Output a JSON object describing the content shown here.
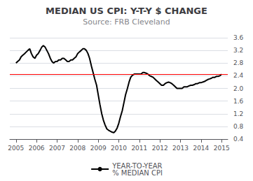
{
  "chart_data": {
    "type": "line",
    "title": "MEDIAN US CPI: Y-T-Y $ CHANGE",
    "subtitle": "Source: FRB Cleveland",
    "x": [
      2005.0,
      2005.08,
      2005.17,
      2005.25,
      2005.33,
      2005.42,
      2005.5,
      2005.58,
      2005.67,
      2005.75,
      2005.83,
      2005.92,
      2006.0,
      2006.08,
      2006.17,
      2006.25,
      2006.33,
      2006.42,
      2006.5,
      2006.58,
      2006.67,
      2006.75,
      2006.83,
      2006.92,
      2007.0,
      2007.08,
      2007.17,
      2007.25,
      2007.33,
      2007.42,
      2007.5,
      2007.58,
      2007.67,
      2007.75,
      2007.83,
      2007.92,
      2008.0,
      2008.08,
      2008.17,
      2008.25,
      2008.33,
      2008.42,
      2008.5,
      2008.58,
      2008.67,
      2008.75,
      2008.83,
      2008.92,
      2009.0,
      2009.08,
      2009.17,
      2009.25,
      2009.33,
      2009.42,
      2009.5,
      2009.58,
      2009.67,
      2009.75,
      2009.83,
      2009.92,
      2010.0,
      2010.08,
      2010.17,
      2010.25,
      2010.33,
      2010.42,
      2010.5,
      2010.58,
      2010.67,
      2010.75,
      2010.83,
      2010.92,
      2011.0,
      2011.08,
      2011.17,
      2011.25,
      2011.33,
      2011.42,
      2011.5,
      2011.58,
      2011.67,
      2011.75,
      2011.83,
      2011.92,
      2012.0,
      2012.08,
      2012.17,
      2012.25,
      2012.33,
      2012.42,
      2012.5,
      2012.58,
      2012.67,
      2012.75,
      2012.83,
      2012.92,
      2013.0,
      2013.08,
      2013.17,
      2013.25,
      2013.33,
      2013.42,
      2013.5,
      2013.58,
      2013.67,
      2013.75,
      2013.83,
      2013.92,
      2014.0,
      2014.08,
      2014.17,
      2014.25,
      2014.33,
      2014.42,
      2014.5,
      2014.58,
      2014.67,
      2014.75,
      2014.83,
      2014.92,
      2015.0
    ],
    "series": [
      {
        "name": "YEAR-TO-YEAR\n% MEDIAN CPI",
        "color": "#000000",
        "values": [
          2.8,
          2.85,
          2.9,
          3.0,
          3.05,
          3.1,
          3.15,
          3.2,
          3.25,
          3.1,
          3.0,
          2.95,
          3.05,
          3.1,
          3.2,
          3.3,
          3.35,
          3.3,
          3.2,
          3.1,
          2.95,
          2.85,
          2.8,
          2.85,
          2.85,
          2.9,
          2.9,
          2.95,
          2.95,
          2.9,
          2.85,
          2.85,
          2.9,
          2.9,
          2.95,
          3.0,
          3.1,
          3.15,
          3.2,
          3.25,
          3.25,
          3.2,
          3.1,
          2.95,
          2.7,
          2.5,
          2.3,
          2.1,
          1.8,
          1.5,
          1.2,
          1.0,
          0.85,
          0.72,
          0.68,
          0.65,
          0.62,
          0.6,
          0.65,
          0.75,
          0.9,
          1.1,
          1.3,
          1.55,
          1.8,
          2.0,
          2.2,
          2.35,
          2.42,
          2.45,
          2.45,
          2.45,
          2.45,
          2.45,
          2.5,
          2.5,
          2.48,
          2.45,
          2.4,
          2.38,
          2.35,
          2.3,
          2.25,
          2.2,
          2.15,
          2.1,
          2.1,
          2.15,
          2.18,
          2.2,
          2.18,
          2.15,
          2.1,
          2.05,
          2.0,
          2.0,
          2.0,
          2.0,
          2.05,
          2.05,
          2.05,
          2.08,
          2.1,
          2.1,
          2.12,
          2.15,
          2.15,
          2.18,
          2.18,
          2.2,
          2.22,
          2.25,
          2.28,
          2.3,
          2.32,
          2.35,
          2.35,
          2.38,
          2.38,
          2.4,
          2.45
        ]
      }
    ],
    "hline": {
      "value": 2.45,
      "color": "#ff0000"
    },
    "xlim": [
      2004.7,
      2015.3
    ],
    "ylim": [
      0.4,
      3.6
    ],
    "xticks": [
      2005,
      2006,
      2007,
      2008,
      2009,
      2010,
      2011,
      2012,
      2013,
      2014,
      2015
    ],
    "yticks": [
      0.4,
      0.8,
      1.2,
      1.6,
      {
        "value": 2,
        "label": "2.0"
      },
      2.4,
      2.8,
      3.2,
      3.6
    ],
    "grid": true,
    "legend": "bottom"
  }
}
